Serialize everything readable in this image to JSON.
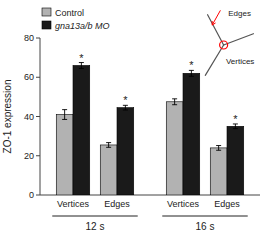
{
  "chart_data": {
    "type": "bar",
    "y_label": "ZO-1 expression",
    "categories": [
      "Vertices",
      "Edges",
      "Vertices",
      "Edges"
    ],
    "category_groups": [
      "12 s",
      "12 s",
      "16 s",
      "16 s"
    ],
    "series": [
      {
        "name": "Control",
        "color": "#b2b2b2",
        "values": [
          41,
          25.5,
          47.5,
          24
        ],
        "errors": [
          2.5,
          1.2,
          1.5,
          1.2
        ]
      },
      {
        "name": "gna13a/b MO",
        "color": "#1a1a1a",
        "values": [
          66,
          44.5,
          62,
          35
        ],
        "errors": [
          1.5,
          1.2,
          1.5,
          1.2
        ],
        "significance": [
          "*",
          "*",
          "*",
          "*"
        ]
      }
    ],
    "ylim": [
      0,
      80
    ],
    "yticks": [
      0,
      20,
      40,
      60,
      80
    ],
    "grid": false,
    "legend": "upper left",
    "annotations": [
      "Edges",
      "Vertices"
    ]
  }
}
